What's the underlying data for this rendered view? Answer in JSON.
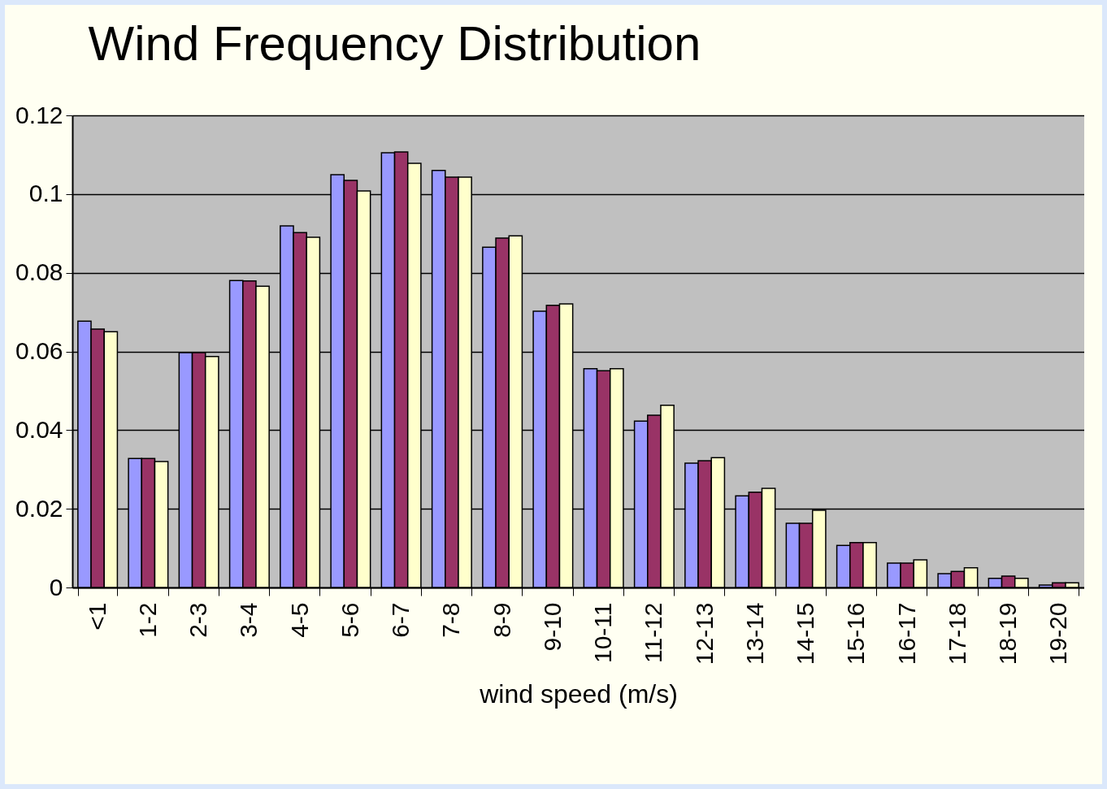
{
  "chart_data": {
    "type": "bar",
    "title": "Wind Frequency Distribution",
    "xlabel": "wind speed (m/s)",
    "categories": [
      "<1",
      "1-2",
      "2-3",
      "3-4",
      "4-5",
      "5-6",
      "6-7",
      "7-8",
      "8-9",
      "9-10",
      "10-11",
      "11-12",
      "12-13",
      "13-14",
      "14-15",
      "15-16",
      "16-17",
      "17-18",
      "18-19",
      "19-20"
    ],
    "series": [
      {
        "color": "#9999ff",
        "values": [
          0.0677,
          0.0328,
          0.0597,
          0.078,
          0.0919,
          0.1049,
          0.1105,
          0.106,
          0.0865,
          0.0702,
          0.0556,
          0.0423,
          0.0316,
          0.0233,
          0.0163,
          0.0107,
          0.0062,
          0.0035,
          0.0023,
          0.0006
        ]
      },
      {
        "color": "#993366",
        "values": [
          0.0657,
          0.0328,
          0.0597,
          0.0779,
          0.0902,
          0.1035,
          0.1107,
          0.1043,
          0.0888,
          0.0717,
          0.0551,
          0.0438,
          0.0322,
          0.0242,
          0.0163,
          0.0114,
          0.0062,
          0.0041,
          0.0029,
          0.0012
        ]
      },
      {
        "color": "#ffffcc",
        "values": [
          0.065,
          0.032,
          0.0587,
          0.0766,
          0.089,
          0.1008,
          0.1078,
          0.1043,
          0.0894,
          0.0721,
          0.0556,
          0.0463,
          0.033,
          0.0252,
          0.0196,
          0.0114,
          0.007,
          0.005,
          0.0023,
          0.0012
        ]
      }
    ],
    "ylim": [
      0,
      0.12
    ],
    "yticks": [
      0,
      0.02,
      0.04,
      0.06,
      0.08,
      0.1,
      0.12
    ],
    "grid": "y"
  }
}
